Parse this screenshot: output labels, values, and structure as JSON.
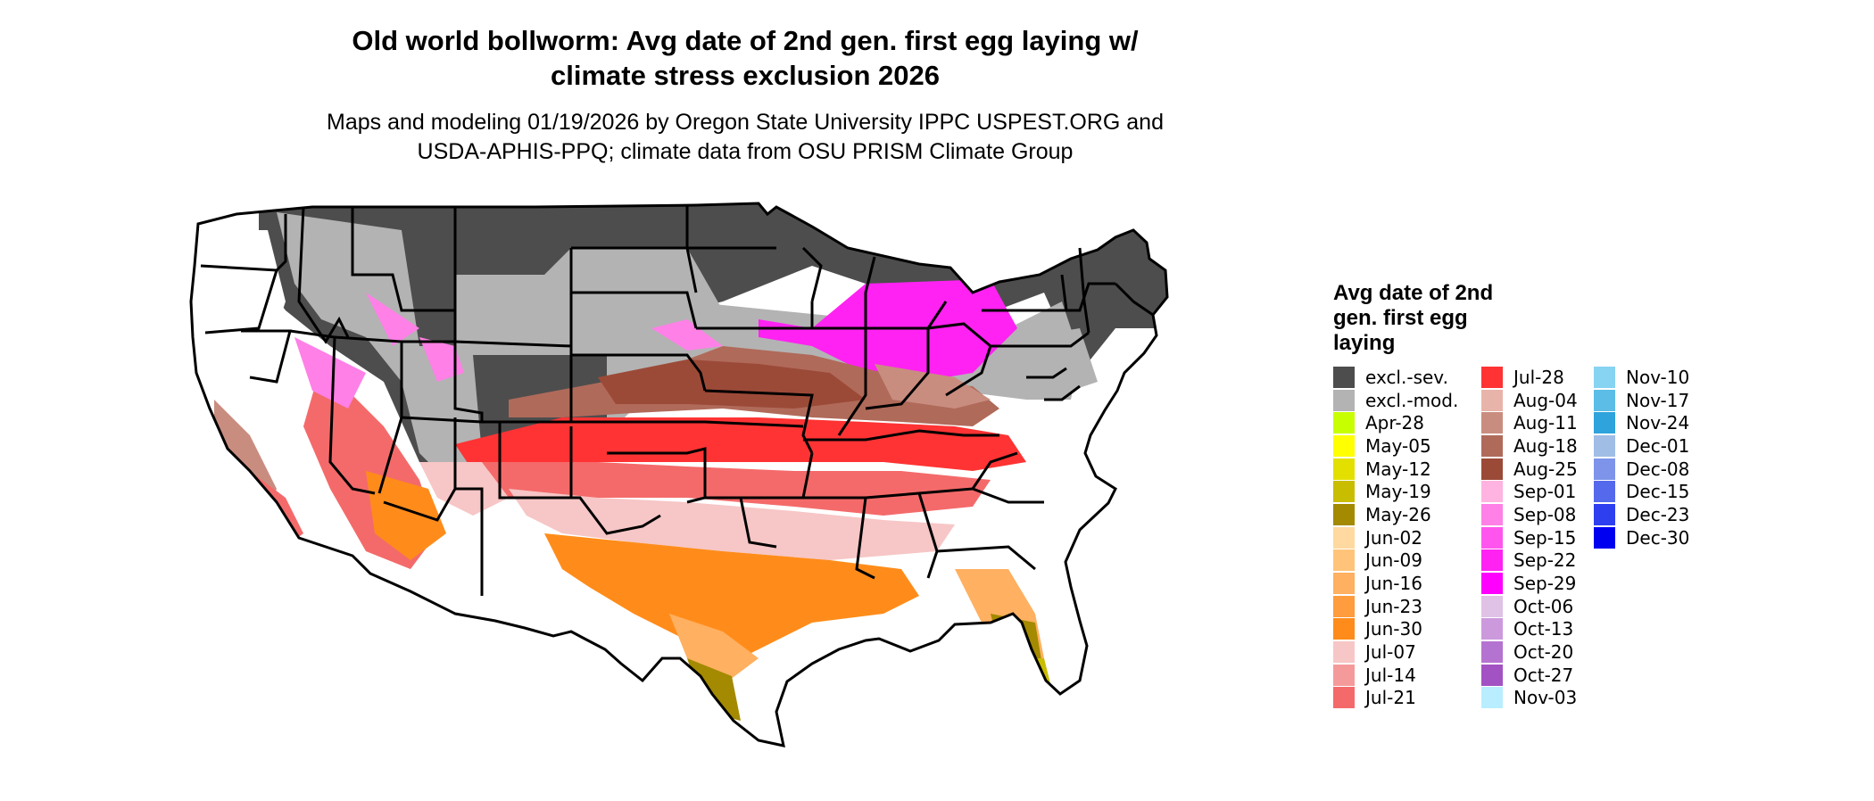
{
  "title_line1": "Old world bollworm: Avg date of 2nd gen. first egg laying w/",
  "title_line2": "climate stress exclusion 2026",
  "subtitle_line1": "Maps and modeling 01/19/2026 by Oregon State University IPPC USPEST.ORG and",
  "subtitle_line2": "USDA-APHIS-PPQ; climate data from OSU PRISM Climate Group",
  "legend": {
    "title_line1": "Avg date of 2nd",
    "title_line2": "gen. first egg",
    "title_line3": "laying",
    "columns": [
      [
        {
          "label": "excl.-sev.",
          "color": "#4d4d4d"
        },
        {
          "label": "excl.-mod.",
          "color": "#b3b3b3"
        },
        {
          "label": "Apr-28",
          "color": "#c8ff00"
        },
        {
          "label": "May-05",
          "color": "#ffff00"
        },
        {
          "label": "May-12",
          "color": "#e3e000"
        },
        {
          "label": "May-19",
          "color": "#c9bd00"
        },
        {
          "label": "May-26",
          "color": "#a38a00"
        },
        {
          "label": "Jun-02",
          "color": "#ffd9a0"
        },
        {
          "label": "Jun-09",
          "color": "#ffc47a"
        },
        {
          "label": "Jun-16",
          "color": "#ffb060"
        },
        {
          "label": "Jun-23",
          "color": "#ff9c3d"
        },
        {
          "label": "Jun-30",
          "color": "#ff8c1a"
        },
        {
          "label": "Jul-07",
          "color": "#f7c6c6"
        },
        {
          "label": "Jul-14",
          "color": "#f59a9a"
        },
        {
          "label": "Jul-21",
          "color": "#f46a6a"
        }
      ],
      [
        {
          "label": "Jul-28",
          "color": "#ff3333"
        },
        {
          "label": "Aug-04",
          "color": "#e8b4aa"
        },
        {
          "label": "Aug-11",
          "color": "#c98d80"
        },
        {
          "label": "Aug-18",
          "color": "#b06a5a"
        },
        {
          "label": "Aug-25",
          "color": "#9c4a38"
        },
        {
          "label": "Sep-01",
          "color": "#ffb3e0"
        },
        {
          "label": "Sep-08",
          "color": "#ff80e6"
        },
        {
          "label": "Sep-15",
          "color": "#ff55ee"
        },
        {
          "label": "Sep-22",
          "color": "#ff22f2"
        },
        {
          "label": "Sep-29",
          "color": "#ff00ff"
        },
        {
          "label": "Oct-06",
          "color": "#e0c2e6"
        },
        {
          "label": "Oct-13",
          "color": "#cc99dd"
        },
        {
          "label": "Oct-20",
          "color": "#b573d1"
        },
        {
          "label": "Oct-27",
          "color": "#a352c4"
        },
        {
          "label": "Nov-03",
          "color": "#b8eeff"
        }
      ],
      [
        {
          "label": "Nov-10",
          "color": "#87d3f2"
        },
        {
          "label": "Nov-17",
          "color": "#5cbde6"
        },
        {
          "label": "Nov-24",
          "color": "#2ea3dc"
        },
        {
          "label": "Dec-01",
          "color": "#a0bde6"
        },
        {
          "label": "Dec-08",
          "color": "#7d94ea"
        },
        {
          "label": "Dec-15",
          "color": "#5569ec"
        },
        {
          "label": "Dec-23",
          "color": "#2e3ff0"
        },
        {
          "label": "Dec-30",
          "color": "#0000f0"
        }
      ]
    ]
  }
}
